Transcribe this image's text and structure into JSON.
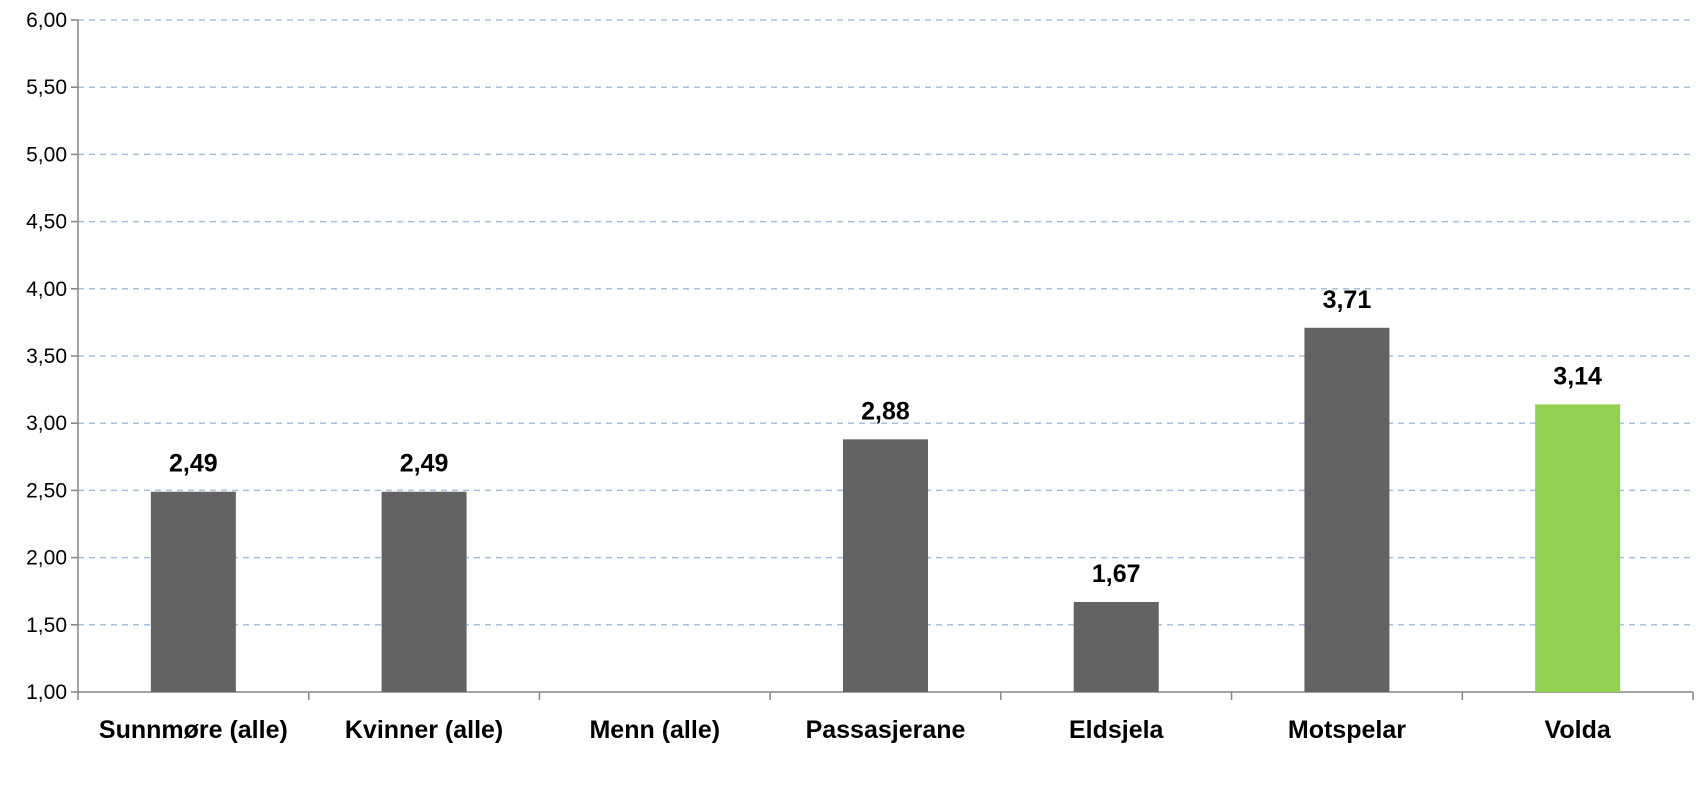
{
  "chart_data": {
    "type": "bar",
    "categories": [
      "Sunnmøre (alle)",
      "Kvinner (alle)",
      "Menn (alle)",
      "Passasjerane",
      "Eldsjela",
      "Motspelar",
      "Volda"
    ],
    "values": [
      2.49,
      2.49,
      null,
      2.88,
      1.67,
      3.71,
      3.14
    ],
    "data_labels": [
      "2,49",
      "2,49",
      "",
      "2,88",
      "1,67",
      "3,71",
      "3,14"
    ],
    "bar_colors": [
      "#636363",
      "#636363",
      "#636363",
      "#636363",
      "#636363",
      "#636363",
      "#92d050"
    ],
    "title": "",
    "xlabel": "",
    "ylabel": "",
    "ylim": [
      1.0,
      6.0
    ],
    "yticks": [
      1.0,
      1.5,
      2.0,
      2.5,
      3.0,
      3.5,
      4.0,
      4.5,
      5.0,
      5.5,
      6.0
    ],
    "ytick_labels": [
      "1,00",
      "1,50",
      "2,00",
      "2,50",
      "3,00",
      "3,50",
      "4,00",
      "4,50",
      "5,00",
      "5,50",
      "6,00"
    ],
    "grid": true,
    "grid_style": "dashed",
    "grid_color": "#a8c0e0",
    "legend": "none"
  }
}
